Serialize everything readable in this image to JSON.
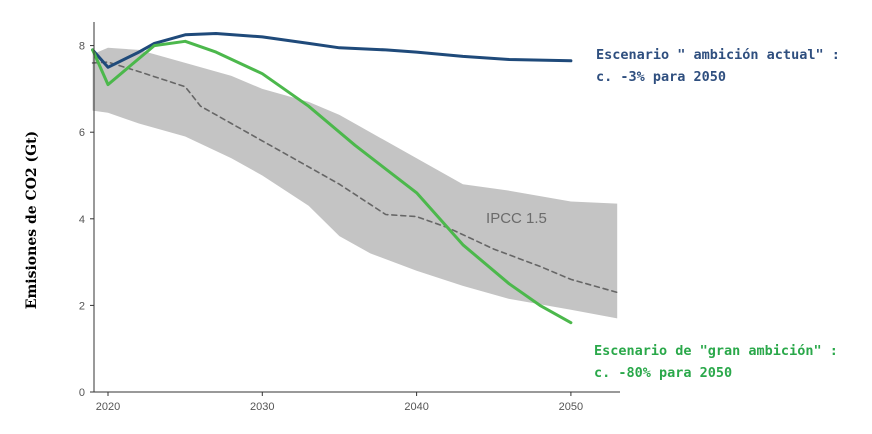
{
  "chart_data": {
    "type": "line",
    "ylabel": "Emisiones de CO2 (Gt)",
    "xlim": [
      2019,
      2053
    ],
    "ylim": [
      0,
      8.5
    ],
    "x_ticks": [
      "2020",
      "2030",
      "2040",
      "2050"
    ],
    "y_ticks": [
      "0",
      "2",
      "4",
      "6",
      "8"
    ],
    "band": {
      "name": "IPCC 1.5",
      "color": "#c4c4c4",
      "upper": [
        [
          2019,
          7.8
        ],
        [
          2020,
          7.95
        ],
        [
          2022,
          7.9
        ],
        [
          2025,
          7.6
        ],
        [
          2028,
          7.3
        ],
        [
          2030,
          7.0
        ],
        [
          2033,
          6.7
        ],
        [
          2035,
          6.4
        ],
        [
          2038,
          5.8
        ],
        [
          2040,
          5.4
        ],
        [
          2043,
          4.8
        ],
        [
          2046,
          4.65
        ],
        [
          2050,
          4.4
        ],
        [
          2053,
          4.35
        ]
      ],
      "lower": [
        [
          2019,
          6.5
        ],
        [
          2020,
          6.45
        ],
        [
          2022,
          6.2
        ],
        [
          2025,
          5.9
        ],
        [
          2028,
          5.4
        ],
        [
          2030,
          5.0
        ],
        [
          2033,
          4.3
        ],
        [
          2035,
          3.6
        ],
        [
          2037,
          3.2
        ],
        [
          2040,
          2.8
        ],
        [
          2043,
          2.45
        ],
        [
          2046,
          2.15
        ],
        [
          2050,
          1.9
        ],
        [
          2053,
          1.7
        ]
      ]
    },
    "series": [
      {
        "role": "median",
        "color": "#666666",
        "dashed": true,
        "points": [
          [
            2019,
            7.6
          ],
          [
            2020,
            7.62
          ],
          [
            2022,
            7.4
          ],
          [
            2025,
            7.05
          ],
          [
            2026,
            6.6
          ],
          [
            2028,
            6.2
          ],
          [
            2030,
            5.8
          ],
          [
            2032,
            5.4
          ],
          [
            2035,
            4.8
          ],
          [
            2038,
            4.1
          ],
          [
            2040,
            4.05
          ],
          [
            2042,
            3.8
          ],
          [
            2045,
            3.3
          ],
          [
            2048,
            2.9
          ],
          [
            2050,
            2.6
          ],
          [
            2053,
            2.3
          ]
        ]
      },
      {
        "role": "current-ambition",
        "color": "#1f4a7a",
        "points": [
          [
            2019,
            7.9
          ],
          [
            2020,
            7.5
          ],
          [
            2022,
            7.85
          ],
          [
            2023,
            8.05
          ],
          [
            2025,
            8.25
          ],
          [
            2027,
            8.28
          ],
          [
            2030,
            8.2
          ],
          [
            2033,
            8.05
          ],
          [
            2035,
            7.95
          ],
          [
            2038,
            7.9
          ],
          [
            2040,
            7.85
          ],
          [
            2043,
            7.75
          ],
          [
            2046,
            7.68
          ],
          [
            2050,
            7.65
          ]
        ]
      },
      {
        "role": "high-ambition",
        "color": "#4cb84c",
        "points": [
          [
            2019,
            7.9
          ],
          [
            2020,
            7.1
          ],
          [
            2023,
            8.0
          ],
          [
            2025,
            8.1
          ],
          [
            2027,
            7.85
          ],
          [
            2030,
            7.35
          ],
          [
            2033,
            6.6
          ],
          [
            2036,
            5.7
          ],
          [
            2040,
            4.6
          ],
          [
            2043,
            3.4
          ],
          [
            2046,
            2.5
          ],
          [
            2048,
            2.0
          ],
          [
            2050,
            1.6
          ]
        ]
      }
    ]
  },
  "annotations": {
    "current_line1": "Escenario \" ambición actual\" :",
    "current_line2": "c. -3% para 2050",
    "high_line1": "Escenario de \"gran ambición\" :",
    "high_line2": "c. -80% para 2050"
  }
}
